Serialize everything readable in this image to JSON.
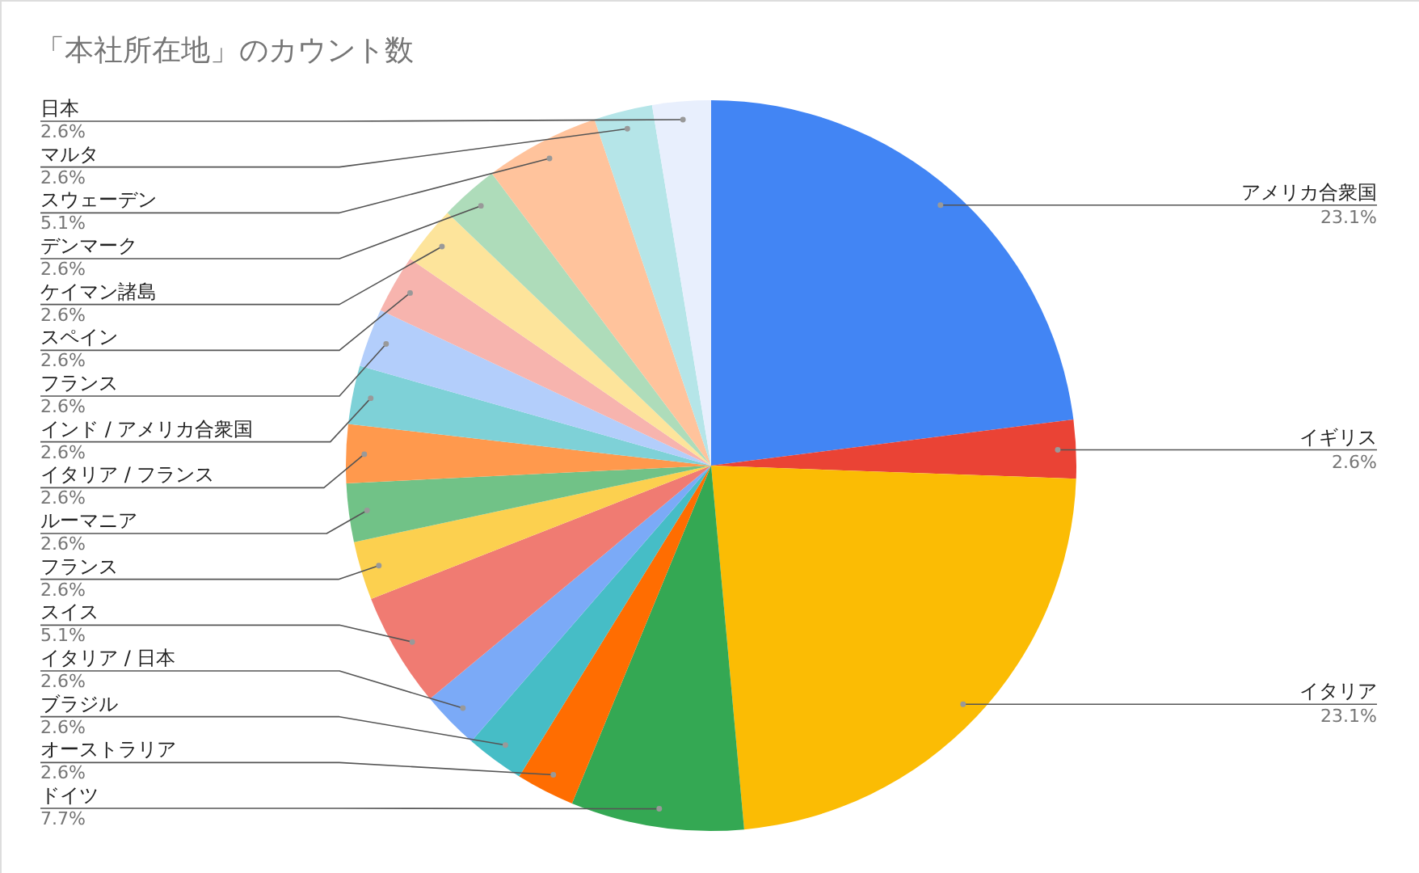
{
  "chart_data": {
    "type": "pie",
    "title": "「本社所在地」のカウント数",
    "categories": [
      "アメリカ合衆国",
      "イギリス",
      "イタリア",
      "ドイツ",
      "オーストラリア",
      "ブラジル",
      "イタリア / 日本",
      "スイス",
      "フランス",
      "ルーマニア",
      "イタリア / フランス",
      "インド / アメリカ合衆国",
      "フランス",
      "スペイン",
      "ケイマン諸島",
      "デンマーク",
      "スウェーデン",
      "マルタ",
      "日本"
    ],
    "values": [
      23.1,
      2.6,
      23.1,
      7.7,
      2.6,
      2.6,
      2.6,
      5.1,
      2.6,
      2.6,
      2.6,
      2.6,
      2.6,
      2.6,
      2.6,
      2.6,
      5.1,
      2.6,
      2.6
    ],
    "value_labels": [
      "23.1%",
      "2.6%",
      "23.1%",
      "7.7%",
      "2.6%",
      "2.6%",
      "2.6%",
      "5.1%",
      "2.6%",
      "2.6%",
      "2.6%",
      "2.6%",
      "2.6%",
      "2.6%",
      "2.6%",
      "2.6%",
      "5.1%",
      "2.6%",
      "2.6%"
    ],
    "colors": [
      "#4285f4",
      "#ea4335",
      "#fbbc04",
      "#34a853",
      "#ff6d01",
      "#46bdc6",
      "#7baaf7",
      "#f07b72",
      "#fcd04f",
      "#71c287",
      "#ff994d",
      "#7ed1d7",
      "#b3cefb",
      "#f7b4ae",
      "#fde49b",
      "#aedcba",
      "#ffc39c",
      "#b5e5e8",
      "#e8effd"
    ]
  }
}
